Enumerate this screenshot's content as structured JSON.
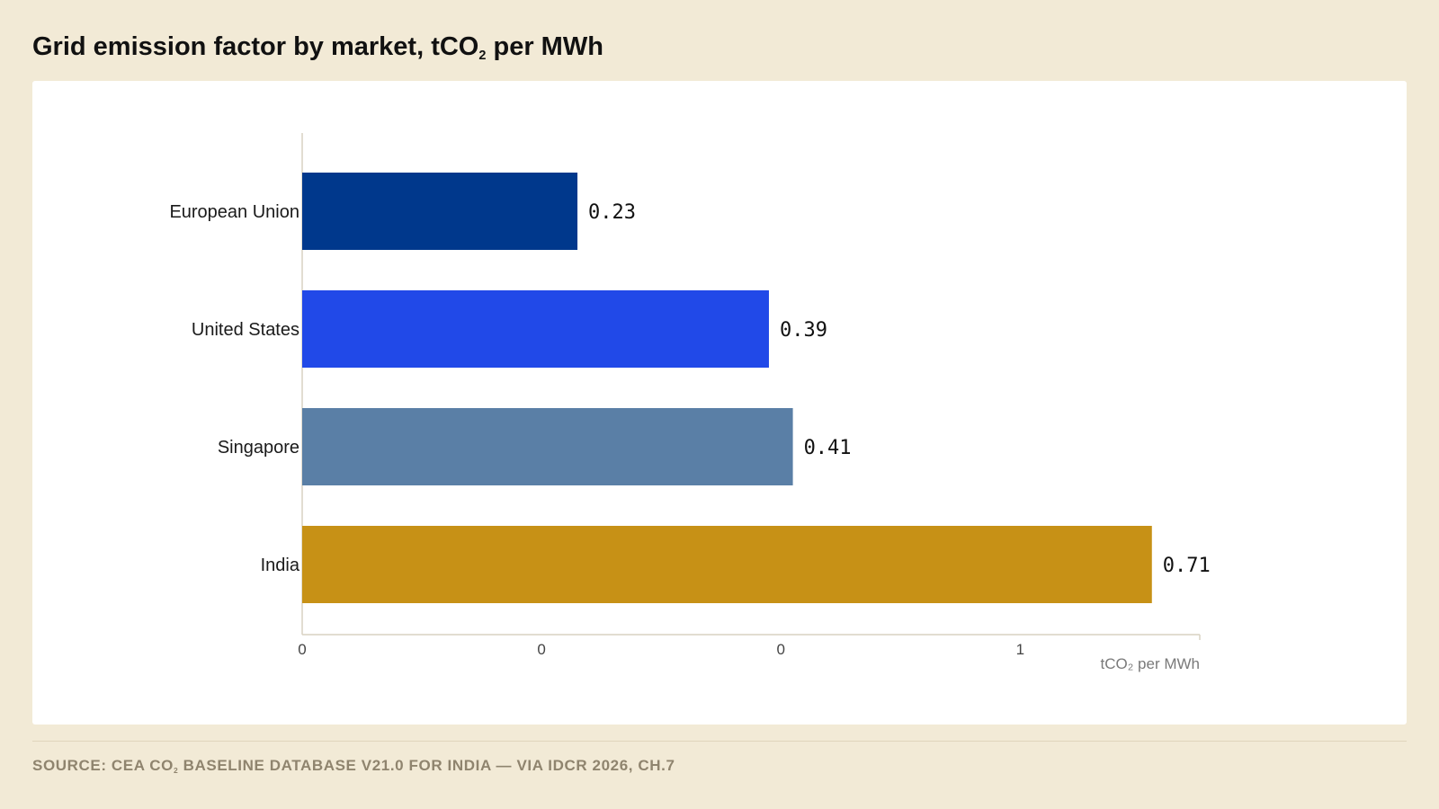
{
  "header": {
    "title_main": "Grid emission factor by market, tCO",
    "title_sub": "2",
    "title_tail": " per MWh"
  },
  "footer": {
    "source_main": "SOURCE: CEA CO",
    "source_sub": "2",
    "source_tail": " BASELINE DATABASE V21.0 FOR INDIA — VIA IDCR 2026, CH.7"
  },
  "chart_data": {
    "type": "bar",
    "orientation": "horizontal",
    "categories": [
      "European Union",
      "United States",
      "Singapore",
      "India"
    ],
    "values": [
      0.23,
      0.39,
      0.41,
      0.71
    ],
    "value_labels": [
      "0.23",
      "0.39",
      "0.41",
      "0.71"
    ],
    "colors": [
      "#00388c",
      "#2149e8",
      "#5a7fa6",
      "#c79116"
    ],
    "xlim": [
      0,
      0.75
    ],
    "x_ticks": [
      0,
      0.2,
      0.4,
      0.6
    ],
    "x_tick_labels": [
      "0",
      "0",
      "0",
      "1"
    ],
    "xlabel": "tCO₂ per MWh",
    "grid": false,
    "axis_color": "#d9d2c2"
  }
}
